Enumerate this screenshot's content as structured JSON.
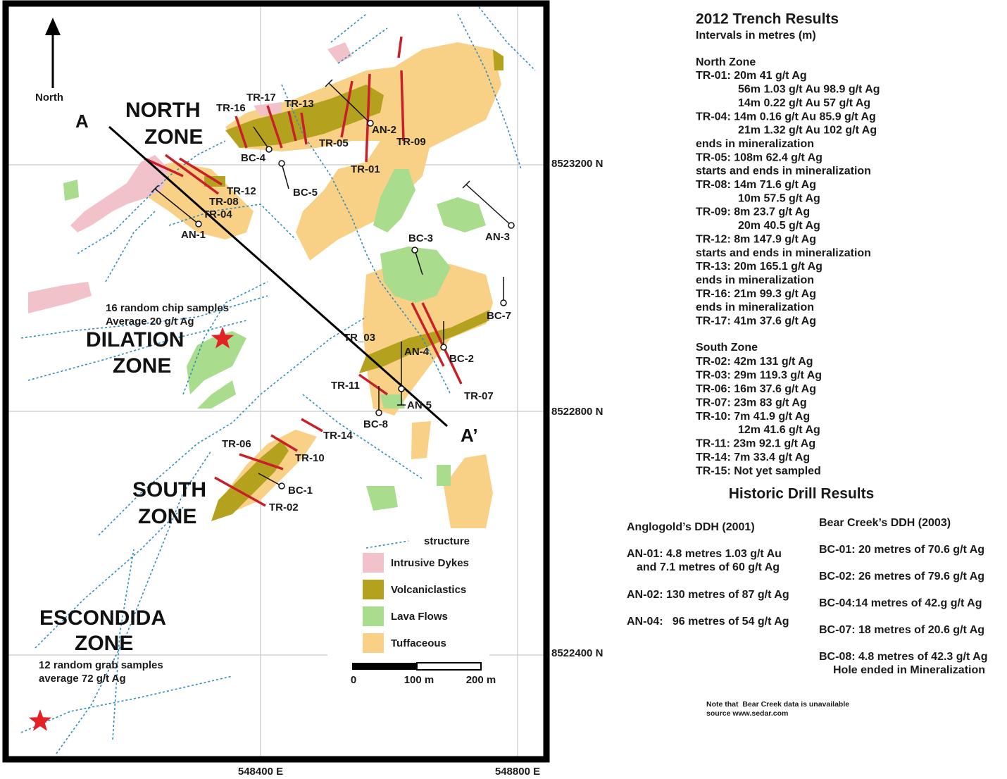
{
  "map": {
    "north_arrow": "North",
    "section": [
      "A",
      "A’"
    ],
    "zones": [
      "NORTH",
      "ZONE",
      "DILATION",
      "ZONE",
      "SOUTH",
      "ZONE",
      "ESCONDIDA",
      "ZONE"
    ],
    "notes": [
      "16 random chip samples",
      "Average 20 g/t Ag",
      "12 random grab samples",
      "average 72 g/t Ag"
    ],
    "labels": [
      "TR-16",
      "TR-17",
      "TR-13",
      "AN-2",
      "TR-05",
      "TR-09",
      "TR-01",
      "BC-4",
      "BC-5",
      "TR-12",
      "TR-08",
      "TR-04",
      "AN-1",
      "AN-3",
      "BC-3",
      "BC-7",
      "TR_03",
      "AN-4",
      "BC-2",
      "TR-11",
      "AN-5",
      "TR-07",
      "BC-8",
      "TR-14",
      "TR-06",
      "TR-10",
      "BC-1",
      "TR-02"
    ],
    "northings": [
      "8523200 N",
      "8522800 N",
      "8522400 N"
    ],
    "eastings": [
      "548400 E",
      "548800 E"
    ],
    "legend": [
      "structure",
      "Intrusive Dykes",
      "Volcaniclastics",
      "Lava Flows",
      "Tuffaceous"
    ],
    "scale": [
      "0",
      "100 m",
      "200 m"
    ]
  },
  "results": {
    "title": "2012 Trench Results",
    "subtitle": "Intervals in metres (m)",
    "north_heading": "North Zone",
    "north": [
      "TR-01: 20m 41 g/t Ag",
      "56m 1.03 g/t Au 98.9 g/t Ag",
      "14m 0.22 g/t Au 57 g/t Ag",
      "TR-04: 14m 0.16 g/t Au 85.9 g/t Ag",
      "21m 1.32 g/t Au 102 g/t Ag",
      "ends in mineralization",
      "TR-05: 108m 62.4 g/t Ag",
      "starts and ends in mineralization",
      "TR-08: 14m 71.6 g/t Ag",
      "10m 57.5 g/t Ag",
      "TR-09: 8m 23.7 g/t Ag",
      "20m 40.5 g/t Ag",
      "TR-12: 8m 147.9 g/t Ag",
      "starts and ends in mineralization",
      "TR-13: 20m 165.1 g/t Ag",
      "ends in mineralization",
      "TR-16: 21m 99.3 g/t Ag",
      "ends in mineralization",
      "TR-17: 41m 37.6 g/t Ag"
    ],
    "south_heading": "South Zone",
    "south": [
      "TR-02: 42m 131 g/t Ag",
      "TR-03: 29m 119.3 g/t Ag",
      "TR-06: 16m 37.6 g/t Ag",
      "TR-07: 23m 83 g/t Ag",
      "TR-10: 7m 41.9 g/t Ag",
      "12m 41.6 g/t Ag",
      "TR-11: 23m 92.1 g/t Ag",
      "TR-14: 7m 33.4 g/t Ag",
      "TR-15: Not yet sampled"
    ]
  },
  "historic": {
    "title": "Historic Drill Results",
    "anglogold_heading": "Anglogold’s DDH (2001)",
    "anglogold": [
      "AN-01: 4.8 metres 1.03 g/t Au",
      "and 7.1 metres of 60 g/t Ag",
      "AN-02: 130 metres of 87 g/t Ag",
      "AN-04:   96 metres of 54 g/t Ag"
    ],
    "bearcreek_heading": "Bear Creek’s DDH (2003)",
    "bearcreek": [
      "BC-01: 20 metres of 70.6 g/t Ag",
      "BC-02: 26 metres of 79.6 g/t Ag",
      "BC-04:14 metres of 42.g g/t Ag",
      "BC-07: 18 metres of 20.6 g/t Ag",
      "BC-08: 4.8 metres of 42.3 g/t Ag",
      "Hole ended in Mineralization"
    ],
    "note": [
      "Note that  Bear Creek data is unavailable",
      "source www.sedar.com"
    ]
  }
}
